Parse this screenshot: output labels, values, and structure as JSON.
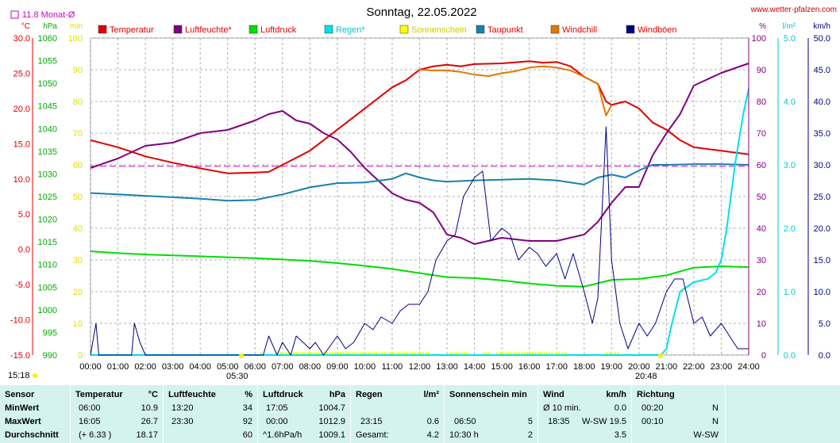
{
  "chart_data": {
    "type": "line",
    "title": "Sonntag, 22.05.2022",
    "source": "www.wetter-pfalzen.com",
    "monthly_avg_label": "11.8 Monat-Ø",
    "monthly_avg_temp": 11.8,
    "x_ticks": [
      "00:00",
      "01:00",
      "02:00",
      "03:00",
      "04:00",
      "05:00",
      "06:00",
      "07:00",
      "08:00",
      "09:00",
      "10:00",
      "11:00",
      "12:00",
      "13:00",
      "14:00",
      "15:00",
      "16:00",
      "17:00",
      "18:00",
      "19:00",
      "20:00",
      "21:00",
      "22:00",
      "23:00",
      "24:00"
    ],
    "sunrise": "05:30",
    "sunset": "20:48",
    "now": "15:18",
    "axes": {
      "temp": {
        "unit": "°C",
        "min": -15,
        "max": 30,
        "ticks": [
          "30.0",
          "25.0",
          "20.0",
          "15.0",
          "10.0",
          "5.0",
          "0.0",
          "-5.0",
          "-10.0",
          "-15.0"
        ]
      },
      "pressure": {
        "unit": "hPa",
        "min": 990,
        "max": 1060,
        "ticks": [
          "1060",
          "1055",
          "1050",
          "1045",
          "1040",
          "1035",
          "1030",
          "1025",
          "1020",
          "1015",
          "1010",
          "1005",
          "1000",
          "995",
          "990"
        ]
      },
      "minutes": {
        "unit": "min",
        "min": 0,
        "max": 100,
        "ticks": [
          "100",
          "90",
          "80",
          "70",
          "60",
          "50",
          "40",
          "30",
          "20",
          "10",
          "0"
        ]
      },
      "humidity": {
        "unit": "%",
        "min": 0,
        "max": 100,
        "ticks": [
          "100",
          "90",
          "80",
          "70",
          "60",
          "50",
          "40",
          "30",
          "20",
          "10",
          "0"
        ]
      },
      "rain": {
        "unit": "l/m²",
        "min": 0,
        "max": 5,
        "ticks": [
          "5.0",
          "4.0",
          "3.0",
          "2.0",
          "1.0",
          "0.0"
        ]
      },
      "wind": {
        "unit": "km/h",
        "min": 0,
        "max": 50,
        "ticks": [
          "50.0",
          "45.0",
          "40.0",
          "35.0",
          "30.0",
          "25.0",
          "20.0",
          "15.0",
          "10.0",
          "5.0",
          "0.0"
        ]
      }
    },
    "legend": [
      {
        "name": "Temperatur",
        "color": "#e00000"
      },
      {
        "name": "Luftfeuchte*",
        "color": "#800080"
      },
      {
        "name": "Luftdruck",
        "color": "#00dd00"
      },
      {
        "name": "Regen*",
        "color": "#00e0e8"
      },
      {
        "name": "Sonnenschein",
        "color": "#ffff00"
      },
      {
        "name": "Taupunkt",
        "color": "#1a7fb0"
      },
      {
        "name": "Windchill",
        "color": "#e07800"
      },
      {
        "name": "Windböen",
        "color": "#000080"
      }
    ],
    "series": [
      {
        "name": "Temperatur",
        "axis": "temp",
        "color": "#e00000",
        "x": [
          0,
          1,
          2,
          3,
          4,
          5,
          6,
          6.5,
          7,
          8,
          9,
          10,
          11,
          11.5,
          12,
          12.5,
          13,
          13.5,
          14,
          15,
          16,
          16.5,
          17,
          17.5,
          18,
          18.5,
          18.8,
          19,
          19.5,
          20,
          20.5,
          21,
          21.5,
          22,
          23,
          24
        ],
        "y": [
          15.5,
          14.5,
          13.2,
          12.3,
          11.5,
          10.8,
          10.9,
          11.0,
          12.0,
          14.0,
          17.0,
          20.0,
          23.0,
          24.0,
          25.5,
          26.0,
          26.2,
          26.0,
          26.3,
          26.4,
          26.7,
          26.5,
          26.6,
          26.0,
          24.5,
          23.5,
          21.0,
          20.5,
          21.0,
          20.0,
          18.0,
          17.0,
          15.5,
          14.5,
          14.0,
          13.5
        ]
      },
      {
        "name": "Windchill",
        "axis": "temp",
        "color": "#e07800",
        "x": [
          12,
          12.5,
          13,
          13.5,
          14,
          14.5,
          15,
          15.5,
          16,
          16.5,
          17,
          17.5,
          18,
          18.5,
          18.8,
          19
        ],
        "y": [
          25.5,
          25.4,
          25.4,
          25.2,
          24.8,
          24.6,
          25.0,
          25.3,
          25.8,
          26.0,
          25.8,
          25.4,
          24.5,
          23.5,
          19.0,
          20.5
        ]
      },
      {
        "name": "Luftfeuchte*",
        "axis": "humidity",
        "color": "#800080",
        "x": [
          0,
          1,
          2,
          3,
          4,
          5,
          6,
          6.5,
          7,
          7.5,
          8,
          8.5,
          9,
          9.5,
          10,
          10.5,
          11,
          11.5,
          12,
          12.5,
          13,
          13.5,
          14,
          15,
          16,
          17,
          18,
          18.5,
          19,
          19.5,
          20,
          20.5,
          21,
          21.5,
          22,
          23,
          24
        ],
        "y": [
          59,
          62,
          66,
          67,
          70,
          71,
          74,
          76,
          77,
          74,
          73,
          70,
          68,
          64,
          59,
          55,
          51,
          49,
          48,
          45,
          38,
          37,
          35,
          37,
          36,
          36,
          38,
          42,
          48,
          53,
          53,
          63,
          70,
          76,
          85,
          89,
          92
        ]
      },
      {
        "name": "Luftdruck",
        "axis": "pressure",
        "color": "#00dd00",
        "x": [
          0,
          1,
          2,
          3,
          4,
          5,
          6,
          7,
          8,
          9,
          10,
          11,
          12,
          13,
          14,
          15,
          16,
          17,
          18,
          19,
          20,
          21,
          22,
          23,
          24
        ],
        "y": [
          1012.9,
          1012.5,
          1012.2,
          1012.0,
          1011.8,
          1011.6,
          1011.4,
          1011.1,
          1010.8,
          1010.3,
          1009.7,
          1009.0,
          1008.1,
          1007.2,
          1007.0,
          1006.5,
          1005.8,
          1005.3,
          1005.1,
          1006.6,
          1006.8,
          1007.6,
          1009.3,
          1009.6,
          1009.4
        ]
      },
      {
        "name": "Taupunkt",
        "axis": "temp",
        "color": "#1a7fb0",
        "x": [
          0,
          1,
          2,
          3,
          4,
          5,
          6,
          7,
          8,
          9,
          10,
          11,
          11.5,
          12,
          12.5,
          13,
          14,
          15,
          16,
          17,
          18,
          18.5,
          19,
          19.5,
          20,
          20.5,
          21,
          22,
          23,
          24
        ],
        "y": [
          8.0,
          7.8,
          7.6,
          7.4,
          7.2,
          6.9,
          7.0,
          7.8,
          8.8,
          9.4,
          9.5,
          10.0,
          10.8,
          10.2,
          9.8,
          9.6,
          9.8,
          9.9,
          10.0,
          9.8,
          9.2,
          10.2,
          10.6,
          10.2,
          11.2,
          12.0,
          12.0,
          12.1,
          12.1,
          12.0
        ]
      },
      {
        "name": "Regen*",
        "axis": "rain",
        "color": "#00e0e8",
        "x": [
          0,
          20.8,
          21,
          21.2,
          21.5,
          22,
          22.5,
          22.8,
          23,
          23.2,
          23.5,
          23.8,
          24
        ],
        "y": [
          0,
          0,
          0.1,
          0.5,
          1.0,
          1.15,
          1.2,
          1.3,
          1.5,
          2.0,
          3.0,
          3.8,
          4.2
        ]
      },
      {
        "name": "Windböen",
        "axis": "wind",
        "color": "#000080",
        "x": [
          0,
          0.2,
          0.3,
          0.5,
          1.5,
          1.6,
          1.8,
          2.0,
          6.3,
          6.5,
          6.8,
          7.0,
          7.3,
          7.5,
          8.0,
          8.2,
          8.5,
          9.0,
          9.3,
          9.6,
          10.0,
          10.3,
          10.6,
          11.0,
          11.3,
          11.6,
          12.0,
          12.3,
          12.6,
          13.0,
          13.3,
          13.6,
          14.0,
          14.3,
          14.6,
          15.0,
          15.3,
          15.6,
          16.0,
          16.3,
          16.6,
          17.0,
          17.3,
          17.6,
          18.0,
          18.3,
          18.5,
          18.8,
          19.0,
          19.3,
          19.6,
          20.0,
          20.3,
          20.6,
          21.0,
          21.3,
          21.6,
          22.0,
          22.3,
          22.6,
          23.0,
          23.3,
          23.6,
          24.0
        ],
        "y": [
          0,
          5,
          0,
          0,
          0,
          5,
          2,
          0,
          0,
          3,
          0,
          2,
          0,
          3,
          1,
          2,
          0,
          3,
          1,
          2,
          5,
          4,
          6,
          5,
          7,
          8,
          8,
          10,
          15,
          18,
          19,
          25,
          28,
          29,
          18,
          20,
          19,
          15,
          17,
          16,
          14,
          16,
          12,
          16,
          10,
          5,
          9,
          36,
          15,
          5,
          1,
          5,
          3,
          5,
          10,
          12,
          12,
          5,
          6,
          3,
          5,
          3,
          1,
          1
        ]
      }
    ],
    "sunshine_intervals": [
      [
        6.2,
        6.3
      ],
      [
        6.8,
        12.3
      ],
      [
        13.1,
        13.7
      ],
      [
        14.3,
        14.6
      ],
      [
        14.8,
        16.9
      ],
      [
        16.95,
        17.1
      ],
      [
        17.2,
        17.4
      ],
      [
        18.8,
        19.0
      ],
      [
        19.1,
        19.3
      ]
    ]
  },
  "stats": {
    "headers": {
      "sensor": "Sensor",
      "temp": "Temperatur",
      "temp_unit": "°C",
      "hum": "Luftfeuchte",
      "hum_unit": "%",
      "press": "Luftdruck",
      "press_unit": "hPa",
      "rain": "Regen",
      "rain_unit": "l/m²",
      "sun": "Sonnenschein min",
      "wind": "Wind",
      "wind_unit": "km/h",
      "dir": "Richtung"
    },
    "rows": [
      {
        "label": "MinWert",
        "temp_t": "06:00",
        "temp_v": "10.9",
        "hum_t": "13:20",
        "hum_v": "34",
        "press_t": "17:05",
        "press_v": "1004.7",
        "rain_t": "",
        "rain_v": "",
        "sun_t": "",
        "sun_v": "",
        "wind_t": "Ø 10 min.",
        "wind_v": "0.0",
        "dir_t": "00:20",
        "dir_v": "N"
      },
      {
        "label": "MaxWert",
        "temp_t": "16:05",
        "temp_v": "26.7",
        "hum_t": "23:30",
        "hum_v": "92",
        "press_t": "00:00",
        "press_v": "1012.9",
        "rain_t": "23:15",
        "rain_v": "0.6",
        "sun_t": "06:50",
        "sun_v": "5",
        "wind_t": "18:35",
        "wind_v": "W-SW 19.5",
        "dir_t": "00:10",
        "dir_v": "N"
      },
      {
        "label": "Durchschnitt",
        "temp_t": "(+ 6.33 )",
        "temp_v": "18.17",
        "hum_t": "",
        "hum_v": "60",
        "press_t": "^1.6hPa/h",
        "press_v": "1009.1",
        "rain_t": "Gesamt:",
        "rain_v": "4.2",
        "sun_t": "10:30 h",
        "sun_v": "2",
        "wind_t": "",
        "wind_v": "3.5",
        "dir_t": "",
        "dir_v": "W-SW"
      }
    ]
  }
}
